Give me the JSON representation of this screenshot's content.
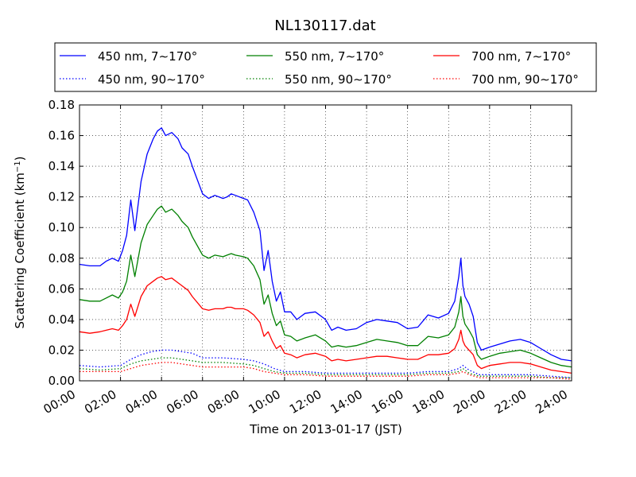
{
  "chart_data": {
    "type": "line",
    "title": "NL130117.dat",
    "xlabel": "Time on 2013-01-17 (JST)",
    "ylabel_main": "Scattering Coefficient (km",
    "ylabel_sup": "−1",
    "ylabel_close": ")",
    "xlim": [
      0,
      24
    ],
    "ylim": [
      0,
      0.18
    ],
    "grid": true,
    "legend_position": "top",
    "x_ticks": [
      {
        "value": 0,
        "label": "00:00"
      },
      {
        "value": 2,
        "label": "02:00"
      },
      {
        "value": 4,
        "label": "04:00"
      },
      {
        "value": 6,
        "label": "06:00"
      },
      {
        "value": 8,
        "label": "08:00"
      },
      {
        "value": 10,
        "label": "10:00"
      },
      {
        "value": 12,
        "label": "12:00"
      },
      {
        "value": 14,
        "label": "14:00"
      },
      {
        "value": 16,
        "label": "16:00"
      },
      {
        "value": 18,
        "label": "18:00"
      },
      {
        "value": 20,
        "label": "20:00"
      },
      {
        "value": 22,
        "label": "22:00"
      },
      {
        "value": 24,
        "label": "24:00"
      }
    ],
    "y_ticks": [
      {
        "value": 0,
        "label": "0.00"
      },
      {
        "value": 0.02,
        "label": "0.02"
      },
      {
        "value": 0.04,
        "label": "0.04"
      },
      {
        "value": 0.06,
        "label": "0.06"
      },
      {
        "value": 0.08,
        "label": "0.08"
      },
      {
        "value": 0.1,
        "label": "0.10"
      },
      {
        "value": 0.12,
        "label": "0.12"
      },
      {
        "value": 0.14,
        "label": "0.14"
      },
      {
        "value": 0.16,
        "label": "0.16"
      },
      {
        "value": 0.18,
        "label": "0.18"
      }
    ],
    "series": [
      {
        "name": "450 nm, 7∼170°",
        "color": "#0000ff",
        "style": "solid",
        "x": [
          0,
          0.5,
          1,
          1.3,
          1.6,
          1.9,
          2.1,
          2.3,
          2.5,
          2.7,
          3.0,
          3.3,
          3.6,
          3.8,
          4.0,
          4.2,
          4.5,
          4.8,
          5.0,
          5.3,
          5.5,
          6.0,
          6.3,
          6.6,
          7.0,
          7.2,
          7.4,
          7.6,
          8.0,
          8.2,
          8.5,
          8.8,
          9.0,
          9.2,
          9.4,
          9.6,
          9.8,
          10.0,
          10.3,
          10.6,
          11.0,
          11.5,
          12.0,
          12.3,
          12.6,
          13.0,
          13.5,
          14.0,
          14.5,
          15.0,
          15.5,
          16.0,
          16.5,
          17.0,
          17.5,
          18.0,
          18.3,
          18.5,
          18.6,
          18.7,
          18.8,
          19.0,
          19.2,
          19.4,
          19.6,
          19.8,
          20.0,
          20.5,
          21.0,
          21.5,
          22.0,
          22.5,
          23.0,
          23.5,
          24.0
        ],
        "y": [
          0.076,
          0.075,
          0.075,
          0.078,
          0.08,
          0.078,
          0.085,
          0.095,
          0.118,
          0.098,
          0.13,
          0.148,
          0.158,
          0.163,
          0.165,
          0.16,
          0.162,
          0.158,
          0.152,
          0.148,
          0.14,
          0.122,
          0.119,
          0.121,
          0.119,
          0.12,
          0.122,
          0.121,
          0.119,
          0.118,
          0.11,
          0.098,
          0.072,
          0.085,
          0.065,
          0.052,
          0.058,
          0.045,
          0.045,
          0.04,
          0.044,
          0.045,
          0.04,
          0.033,
          0.035,
          0.033,
          0.034,
          0.038,
          0.04,
          0.039,
          0.038,
          0.034,
          0.035,
          0.043,
          0.041,
          0.044,
          0.052,
          0.068,
          0.08,
          0.062,
          0.055,
          0.05,
          0.042,
          0.025,
          0.02,
          0.021,
          0.022,
          0.024,
          0.026,
          0.027,
          0.025,
          0.021,
          0.017,
          0.014,
          0.013
        ]
      },
      {
        "name": "550 nm, 7∼170°",
        "color": "#008000",
        "style": "solid",
        "x": [
          0,
          0.5,
          1,
          1.3,
          1.6,
          1.9,
          2.1,
          2.3,
          2.5,
          2.7,
          3.0,
          3.3,
          3.6,
          3.8,
          4.0,
          4.2,
          4.5,
          4.8,
          5.0,
          5.3,
          5.5,
          6.0,
          6.3,
          6.6,
          7.0,
          7.2,
          7.4,
          7.6,
          8.0,
          8.2,
          8.5,
          8.8,
          9.0,
          9.2,
          9.4,
          9.6,
          9.8,
          10.0,
          10.3,
          10.6,
          11.0,
          11.5,
          12.0,
          12.3,
          12.6,
          13.0,
          13.5,
          14.0,
          14.5,
          15.0,
          15.5,
          16.0,
          16.5,
          17.0,
          17.5,
          18.0,
          18.3,
          18.5,
          18.6,
          18.7,
          18.8,
          19.0,
          19.2,
          19.4,
          19.6,
          19.8,
          20.0,
          20.5,
          21.0,
          21.5,
          22.0,
          22.5,
          23.0,
          23.5,
          24.0
        ],
        "y": [
          0.053,
          0.052,
          0.052,
          0.054,
          0.056,
          0.054,
          0.058,
          0.065,
          0.082,
          0.068,
          0.09,
          0.102,
          0.108,
          0.112,
          0.114,
          0.11,
          0.112,
          0.108,
          0.104,
          0.1,
          0.094,
          0.082,
          0.08,
          0.082,
          0.081,
          0.082,
          0.083,
          0.082,
          0.081,
          0.08,
          0.075,
          0.066,
          0.05,
          0.056,
          0.044,
          0.036,
          0.039,
          0.03,
          0.029,
          0.026,
          0.028,
          0.03,
          0.026,
          0.022,
          0.023,
          0.022,
          0.023,
          0.025,
          0.027,
          0.026,
          0.025,
          0.023,
          0.023,
          0.029,
          0.028,
          0.03,
          0.035,
          0.045,
          0.055,
          0.042,
          0.037,
          0.033,
          0.028,
          0.017,
          0.014,
          0.015,
          0.016,
          0.018,
          0.019,
          0.02,
          0.018,
          0.015,
          0.012,
          0.01,
          0.009
        ]
      },
      {
        "name": "700 nm, 7∼170°",
        "color": "#ff0000",
        "style": "solid",
        "x": [
          0,
          0.5,
          1,
          1.3,
          1.6,
          1.9,
          2.1,
          2.3,
          2.5,
          2.7,
          3.0,
          3.3,
          3.6,
          3.8,
          4.0,
          4.2,
          4.5,
          4.8,
          5.0,
          5.3,
          5.5,
          6.0,
          6.3,
          6.6,
          7.0,
          7.2,
          7.4,
          7.6,
          8.0,
          8.2,
          8.5,
          8.8,
          9.0,
          9.2,
          9.4,
          9.6,
          9.8,
          10.0,
          10.3,
          10.6,
          11.0,
          11.5,
          12.0,
          12.3,
          12.6,
          13.0,
          13.5,
          14.0,
          14.5,
          15.0,
          15.5,
          16.0,
          16.5,
          17.0,
          17.5,
          18.0,
          18.3,
          18.5,
          18.6,
          18.7,
          18.8,
          19.0,
          19.2,
          19.4,
          19.6,
          19.8,
          20.0,
          20.5,
          21.0,
          21.5,
          22.0,
          22.5,
          23.0,
          23.5,
          24.0
        ],
        "y": [
          0.032,
          0.031,
          0.032,
          0.033,
          0.034,
          0.033,
          0.036,
          0.04,
          0.05,
          0.042,
          0.055,
          0.062,
          0.065,
          0.067,
          0.068,
          0.066,
          0.067,
          0.064,
          0.062,
          0.059,
          0.055,
          0.047,
          0.046,
          0.047,
          0.047,
          0.048,
          0.048,
          0.047,
          0.047,
          0.046,
          0.043,
          0.038,
          0.029,
          0.032,
          0.026,
          0.021,
          0.023,
          0.018,
          0.017,
          0.015,
          0.017,
          0.018,
          0.016,
          0.013,
          0.014,
          0.013,
          0.014,
          0.015,
          0.016,
          0.016,
          0.015,
          0.014,
          0.014,
          0.017,
          0.017,
          0.018,
          0.021,
          0.027,
          0.033,
          0.026,
          0.023,
          0.02,
          0.017,
          0.01,
          0.008,
          0.009,
          0.01,
          0.011,
          0.012,
          0.012,
          0.011,
          0.009,
          0.007,
          0.006,
          0.005
        ]
      },
      {
        "name": "450 nm, 90∼170°",
        "color": "#0000ff",
        "style": "dotted",
        "x": [
          0,
          1,
          2,
          2.5,
          3,
          3.5,
          4,
          4.5,
          5,
          5.5,
          6,
          7,
          8,
          8.5,
          9,
          9.5,
          10,
          11,
          12,
          13,
          14,
          15,
          16,
          17,
          18,
          18.5,
          18.7,
          19,
          19.5,
          20,
          21,
          22,
          23,
          24
        ],
        "y": [
          0.01,
          0.009,
          0.01,
          0.014,
          0.017,
          0.019,
          0.02,
          0.02,
          0.019,
          0.018,
          0.015,
          0.015,
          0.014,
          0.013,
          0.011,
          0.008,
          0.006,
          0.006,
          0.005,
          0.005,
          0.005,
          0.005,
          0.005,
          0.006,
          0.006,
          0.008,
          0.01,
          0.007,
          0.004,
          0.004,
          0.004,
          0.004,
          0.003,
          0.002
        ]
      },
      {
        "name": "550 nm, 90∼170°",
        "color": "#008000",
        "style": "dotted",
        "x": [
          0,
          1,
          2,
          2.5,
          3,
          3.5,
          4,
          4.5,
          5,
          5.5,
          6,
          7,
          8,
          8.5,
          9,
          9.5,
          10,
          11,
          12,
          13,
          14,
          15,
          16,
          17,
          18,
          18.5,
          18.7,
          19,
          19.5,
          20,
          21,
          22,
          23,
          24
        ],
        "y": [
          0.008,
          0.007,
          0.008,
          0.011,
          0.013,
          0.014,
          0.015,
          0.015,
          0.014,
          0.013,
          0.012,
          0.012,
          0.011,
          0.01,
          0.008,
          0.006,
          0.005,
          0.005,
          0.004,
          0.004,
          0.004,
          0.004,
          0.004,
          0.005,
          0.005,
          0.006,
          0.008,
          0.005,
          0.003,
          0.003,
          0.003,
          0.003,
          0.002,
          0.002
        ]
      },
      {
        "name": "700 nm, 90∼170°",
        "color": "#ff0000",
        "style": "dotted",
        "x": [
          0,
          1,
          2,
          2.5,
          3,
          3.5,
          4,
          4.5,
          5,
          5.5,
          6,
          7,
          8,
          8.5,
          9,
          9.5,
          10,
          11,
          12,
          13,
          14,
          15,
          16,
          17,
          18,
          18.5,
          18.7,
          19,
          19.5,
          20,
          21,
          22,
          23,
          24
        ],
        "y": [
          0.006,
          0.006,
          0.006,
          0.008,
          0.01,
          0.011,
          0.012,
          0.012,
          0.011,
          0.01,
          0.009,
          0.009,
          0.009,
          0.008,
          0.006,
          0.005,
          0.004,
          0.004,
          0.003,
          0.003,
          0.003,
          0.003,
          0.003,
          0.004,
          0.004,
          0.005,
          0.006,
          0.004,
          0.002,
          0.002,
          0.002,
          0.002,
          0.002,
          0.001
        ]
      }
    ],
    "legend_order": [
      0,
      1,
      2,
      3,
      4,
      5
    ]
  }
}
